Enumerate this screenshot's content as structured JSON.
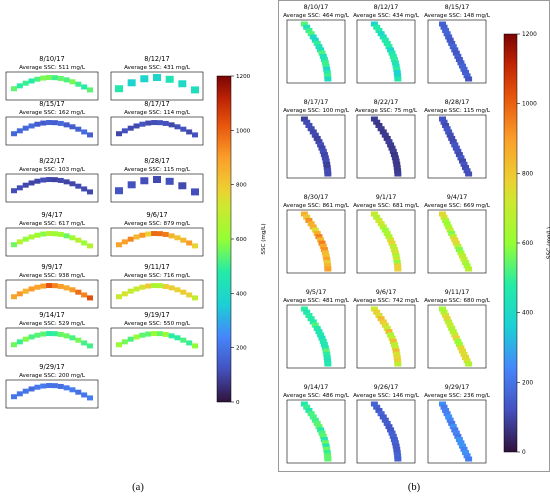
{
  "chart_data": [
    {
      "type": "heatmap",
      "panel_label": "(a)",
      "colorbar": {
        "label": "SSC (mg/L)",
        "range": [
          0,
          1200
        ],
        "ticks": [
          0,
          200,
          400,
          600,
          800,
          1000,
          1200
        ],
        "colormap": "turbo"
      },
      "maps": [
        {
          "date": "8/10/17",
          "caption": "Average SSC: 511 mg/L",
          "avg_ssc": 511
        },
        {
          "date": "8/12/17",
          "caption": "Average SSC: 431 mg/L",
          "avg_ssc": 431
        },
        {
          "date": "8/15/17",
          "caption": "Average SSC: 162 mg/L",
          "avg_ssc": 162
        },
        {
          "date": "8/17/17",
          "caption": "Average SSC: 114 mg/L",
          "avg_ssc": 114
        },
        {
          "date": "8/22/17",
          "caption": "Average SSC: 103 mg/L",
          "avg_ssc": 103
        },
        {
          "date": "8/28/17",
          "caption": "Average SSC: 115 mg/L",
          "avg_ssc": 115
        },
        {
          "date": "9/4/17",
          "caption": "Average SSC: 617 mg/L",
          "avg_ssc": 617
        },
        {
          "date": "9/6/17",
          "caption": "Average SSC: 879 mg/L",
          "avg_ssc": 879
        },
        {
          "date": "9/9/17",
          "caption": "Average SSC: 938 mg/L",
          "avg_ssc": 938
        },
        {
          "date": "9/11/17",
          "caption": "Average SSC: 716 mg/L",
          "avg_ssc": 716
        },
        {
          "date": "9/14/17",
          "caption": "Average SSC: 529 mg/L",
          "avg_ssc": 529
        },
        {
          "date": "9/19/17",
          "caption": "Average SSC: 550 mg/L",
          "avg_ssc": 550
        },
        {
          "date": "9/29/17",
          "caption": "Average SSC: 200 mg/L",
          "avg_ssc": 200
        }
      ]
    },
    {
      "type": "heatmap",
      "panel_label": "(b)",
      "colorbar": {
        "label": "SSC (mg/L)",
        "range": [
          0,
          1200
        ],
        "ticks": [
          0,
          200,
          400,
          600,
          800,
          1000,
          1200
        ],
        "colormap": "turbo"
      },
      "maps": [
        {
          "date": "8/10/17",
          "caption": "Average SSC: 464 mg/L",
          "avg_ssc": 464
        },
        {
          "date": "8/12/17",
          "caption": "Average SSC: 434 mg/L",
          "avg_ssc": 434
        },
        {
          "date": "8/15/17",
          "caption": "Average SSC: 148 mg/L",
          "avg_ssc": 148
        },
        {
          "date": "8/17/17",
          "caption": "Average SSC: 100 mg/L",
          "avg_ssc": 100
        },
        {
          "date": "8/22/17",
          "caption": "Average SSC: 75 mg/L",
          "avg_ssc": 75
        },
        {
          "date": "8/28/17",
          "caption": "Average SSC: 115 mg/L",
          "avg_ssc": 115
        },
        {
          "date": "8/30/17",
          "caption": "Average SSC: 861 mg/L",
          "avg_ssc": 861
        },
        {
          "date": "9/1/17",
          "caption": "Average SSC: 681 mg/L",
          "avg_ssc": 681
        },
        {
          "date": "9/4/17",
          "caption": "Average SSC: 669 mg/L",
          "avg_ssc": 669
        },
        {
          "date": "9/5/17",
          "caption": "Average SSC: 481 mg/L",
          "avg_ssc": 481
        },
        {
          "date": "9/6/17",
          "caption": "Average SSC: 742 mg/L",
          "avg_ssc": 742
        },
        {
          "date": "9/11/17",
          "caption": "Average SSC: 680 mg/L",
          "avg_ssc": 680
        },
        {
          "date": "9/14/17",
          "caption": "Average SSC: 486 mg/L",
          "avg_ssc": 486
        },
        {
          "date": "9/26/17",
          "caption": "Average SSC: 146 mg/L",
          "avg_ssc": 146
        },
        {
          "date": "9/29/17",
          "caption": "Average SSC: 236 mg/L",
          "avg_ssc": 236
        }
      ]
    }
  ]
}
